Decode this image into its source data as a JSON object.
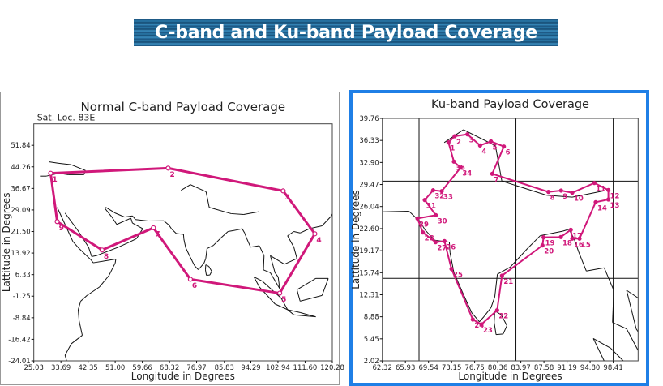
{
  "banner": {
    "title": "C-band and Ku-band Payload Coverage"
  },
  "colors": {
    "coverage": "#d0187a",
    "frame": "#1f7fe6",
    "map": "#111111"
  },
  "chart_data": [
    {
      "type": "map-polygon",
      "title": "Normal C-band Payload Coverage",
      "subtitle": "Sat. Loc. 83E",
      "xlabel": "Longitude in Degrees",
      "ylabel": "Lattitude in Degrees",
      "xticks": [
        "25.03",
        "33.69",
        "42.35",
        "51.00",
        "59.66",
        "68.32",
        "76.97",
        "85.83",
        "94.29",
        "102.94",
        "111.60",
        "120.28"
      ],
      "yticks": [
        "51.84",
        "44.26",
        "36.67",
        "29.09",
        "21.50",
        "13.92",
        "6.33",
        "-1.25",
        "-8.84",
        "-16.42",
        "-24.01"
      ],
      "xlim": [
        25.03,
        120.28
      ],
      "ylim": [
        -24.01,
        59.4
      ],
      "points": [
        {
          "label": "1",
          "lon": 30.4,
          "lat": 42.0
        },
        {
          "label": "2",
          "lon": 67.9,
          "lat": 43.8
        },
        {
          "label": "3",
          "lon": 104.6,
          "lat": 35.8
        },
        {
          "label": "4",
          "lon": 114.7,
          "lat": 20.7
        },
        {
          "label": "5",
          "lon": 103.5,
          "lat": -0.2
        },
        {
          "label": "6",
          "lon": 75.0,
          "lat": 4.7
        },
        {
          "label": "7",
          "lon": 63.2,
          "lat": 22.8
        },
        {
          "label": "8",
          "lon": 46.8,
          "lat": 15.0
        },
        {
          "label": "9",
          "lon": 32.5,
          "lat": 25.0
        }
      ]
    },
    {
      "type": "map-polygon",
      "title": "Ku-band Payload Coverage",
      "xlabel": "Longitude in Degrees",
      "ylabel": "Lattitude in Degrees",
      "xticks": [
        "62.32",
        "65.93",
        "69.54",
        "73.15",
        "76.75",
        "80.36",
        "83.97",
        "87.58",
        "91.19",
        "94.80",
        "98.41"
      ],
      "yticks": [
        "39.76",
        "36.33",
        "32.90",
        "29.47",
        "26.04",
        "22.60",
        "19.17",
        "15.74",
        "12.31",
        "8.88",
        "5.45",
        "2.02"
      ],
      "xlim": [
        62.32,
        102.3
      ],
      "ylim": [
        2.02,
        39.76
      ],
      "grid_lon": [
        68.06,
        83.2,
        98.41
      ],
      "grid_lat": [
        30.0,
        14.86
      ],
      "points": [
        {
          "label": "1",
          "lon": 72.66,
          "lat": 36.02
        },
        {
          "label": "2",
          "lon": 73.63,
          "lat": 36.98
        },
        {
          "label": "3",
          "lon": 75.62,
          "lat": 37.28
        },
        {
          "label": "4",
          "lon": 77.6,
          "lat": 35.55
        },
        {
          "label": "5",
          "lon": 79.29,
          "lat": 36.18
        },
        {
          "label": "6",
          "lon": 81.32,
          "lat": 35.38
        },
        {
          "label": "7",
          "lon": 79.5,
          "lat": 31.14
        },
        {
          "label": "8",
          "lon": 88.28,
          "lat": 28.32
        },
        {
          "label": "9",
          "lon": 90.26,
          "lat": 28.53
        },
        {
          "label": "10",
          "lon": 92.0,
          "lat": 28.19
        },
        {
          "label": "11",
          "lon": 95.46,
          "lat": 29.71
        },
        {
          "label": "12",
          "lon": 97.65,
          "lat": 28.61
        },
        {
          "label": "13",
          "lon": 97.65,
          "lat": 27.14
        },
        {
          "label": "14",
          "lon": 95.67,
          "lat": 26.72
        },
        {
          "label": "15",
          "lon": 93.14,
          "lat": 21.04
        },
        {
          "label": "16",
          "lon": 92.0,
          "lat": 21.04
        },
        {
          "label": "17",
          "lon": 91.78,
          "lat": 22.43
        },
        {
          "label": "18",
          "lon": 90.22,
          "lat": 21.29
        },
        {
          "label": "19",
          "lon": 87.52,
          "lat": 21.25
        },
        {
          "label": "20",
          "lon": 87.35,
          "lat": 19.99
        },
        {
          "label": "21",
          "lon": 81.02,
          "lat": 15.28
        },
        {
          "label": "22",
          "lon": 80.26,
          "lat": 9.89
        },
        {
          "label": "23",
          "lon": 77.81,
          "lat": 7.7
        },
        {
          "label": "24",
          "lon": 76.46,
          "lat": 8.46
        },
        {
          "label": "25",
          "lon": 73.13,
          "lat": 16.33
        },
        {
          "label": "26",
          "lon": 72.03,
          "lat": 20.66
        },
        {
          "label": "27",
          "lon": 70.64,
          "lat": 20.49
        },
        {
          "label": "28",
          "lon": 68.65,
          "lat": 22.01
        },
        {
          "label": "29",
          "lon": 67.81,
          "lat": 24.19
        },
        {
          "label": "30",
          "lon": 70.68,
          "lat": 24.7
        },
        {
          "label": "31",
          "lon": 68.95,
          "lat": 27.06
        },
        {
          "label": "32",
          "lon": 70.26,
          "lat": 28.57
        },
        {
          "label": "33",
          "lon": 71.61,
          "lat": 28.44
        },
        {
          "label": "34",
          "lon": 74.56,
          "lat": 32.1
        },
        {
          "label": "35",
          "lon": 73.51,
          "lat": 33.03
        }
      ]
    }
  ]
}
